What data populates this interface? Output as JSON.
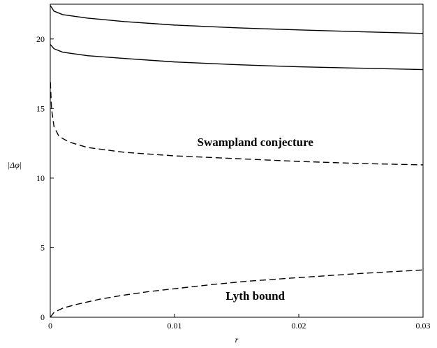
{
  "chart_data": {
    "type": "line",
    "title": "",
    "xlabel": "r",
    "ylabel": "|Δφ|",
    "xlim": [
      0,
      0.03
    ],
    "ylim": [
      0,
      22.5
    ],
    "x_ticks": [
      0,
      0.01,
      0.02,
      0.03
    ],
    "x_tick_labels": [
      "0",
      "0.01",
      "0.02",
      "0.03"
    ],
    "y_ticks": [
      0,
      5,
      10,
      15,
      20
    ],
    "y_tick_labels": [
      "0",
      "5",
      "10",
      "15",
      "20"
    ],
    "grid": false,
    "annotations": [
      {
        "text": "Swampland conjecture",
        "x": 0.0165,
        "y": 12.3
      },
      {
        "text": "Lyth bound",
        "x": 0.0165,
        "y": 1.25
      }
    ],
    "series": [
      {
        "style": "solid",
        "color": "#000000",
        "points": [
          [
            1e-05,
            22.4
          ],
          [
            0.0003,
            22.0
          ],
          [
            0.001,
            21.75
          ],
          [
            0.003,
            21.5
          ],
          [
            0.006,
            21.25
          ],
          [
            0.01,
            21.0
          ],
          [
            0.015,
            20.8
          ],
          [
            0.02,
            20.65
          ],
          [
            0.025,
            20.52
          ],
          [
            0.03,
            20.4
          ]
        ]
      },
      {
        "style": "solid",
        "color": "#000000",
        "points": [
          [
            1e-05,
            19.6
          ],
          [
            0.0003,
            19.3
          ],
          [
            0.001,
            19.05
          ],
          [
            0.003,
            18.8
          ],
          [
            0.006,
            18.6
          ],
          [
            0.01,
            18.35
          ],
          [
            0.015,
            18.15
          ],
          [
            0.02,
            18.0
          ],
          [
            0.025,
            17.9
          ],
          [
            0.03,
            17.8
          ]
        ]
      },
      {
        "style": "dashed",
        "color": "#000000",
        "points": [
          [
            1e-05,
            16.9
          ],
          [
            0.0001,
            15.0
          ],
          [
            0.0003,
            13.7
          ],
          [
            0.0007,
            13.0
          ],
          [
            0.0015,
            12.6
          ],
          [
            0.003,
            12.2
          ],
          [
            0.006,
            11.85
          ],
          [
            0.01,
            11.6
          ],
          [
            0.015,
            11.4
          ],
          [
            0.02,
            11.2
          ],
          [
            0.025,
            11.05
          ],
          [
            0.03,
            10.95
          ]
        ]
      },
      {
        "style": "dashed",
        "color": "#000000",
        "points": [
          [
            0.0,
            0.0
          ],
          [
            0.0003,
            0.35
          ],
          [
            0.001,
            0.65
          ],
          [
            0.002,
            0.9
          ],
          [
            0.004,
            1.3
          ],
          [
            0.006,
            1.6
          ],
          [
            0.008,
            1.85
          ],
          [
            0.01,
            2.05
          ],
          [
            0.013,
            2.35
          ],
          [
            0.016,
            2.6
          ],
          [
            0.02,
            2.85
          ],
          [
            0.025,
            3.15
          ],
          [
            0.03,
            3.4
          ]
        ]
      }
    ]
  }
}
